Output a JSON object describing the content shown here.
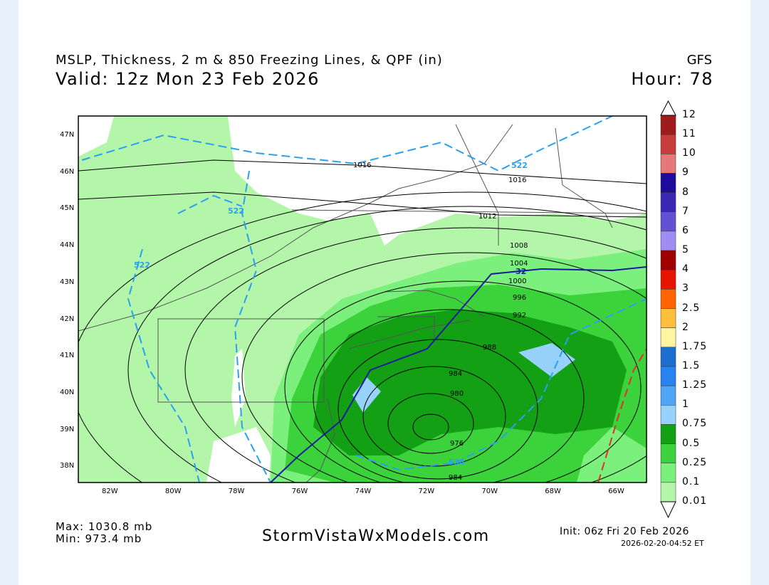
{
  "header": {
    "title": "MSLP, Thickness, 2 m & 850 Freezing Lines, & QPF (in)",
    "model": "GFS",
    "valid": "Valid: 12z Mon 23 Feb 2026",
    "hour": "Hour: 78"
  },
  "map": {
    "lat_labels": [
      "47N",
      "46N",
      "45N",
      "44N",
      "43N",
      "42N",
      "41N",
      "40N",
      "39N",
      "38N"
    ],
    "lon_labels": [
      "82W",
      "80W",
      "78W",
      "76W",
      "74W",
      "72W",
      "70W",
      "68W",
      "66W"
    ],
    "isobar_labels": [
      "1016",
      "1016",
      "1012",
      "1008",
      "1004",
      "1000",
      "996",
      "992",
      "988",
      "984",
      "980",
      "976",
      "984"
    ],
    "thickness_labels": [
      "522",
      "522",
      "522",
      "534"
    ],
    "freezing_label": "32",
    "colors": {
      "qpf_001": "#b3f6a9",
      "qpf_01": "#7cf07c",
      "qpf_025": "#3cd23c",
      "qpf_05": "#14a014",
      "qpf_075": "#96d2fa",
      "thickness": "#2aa0f0",
      "freezing_850": "#1a1aa0",
      "freezing_2m": "#e03030",
      "isobar": "#000000"
    }
  },
  "colorbar": {
    "labels": [
      "12",
      "11",
      "10",
      "9",
      "8",
      "7",
      "6",
      "5",
      "4",
      "3",
      "2.5",
      "2",
      "1.75",
      "1.5",
      "1.25",
      "1",
      "0.75",
      "0.5",
      "0.25",
      "0.1",
      "0.01"
    ],
    "colors": [
      "#a01c1c",
      "#c83c3c",
      "#e67878",
      "#1e0a9b",
      "#3c28b4",
      "#6450d2",
      "#a08cf5",
      "#a00000",
      "#e61400",
      "#ff6400",
      "#ffbe3c",
      "#fff5a0",
      "#1e6ed2",
      "#2882f0",
      "#50a5f5",
      "#96d2fa",
      "#14a014",
      "#3cd23c",
      "#7cf07c",
      "#b3f6a9"
    ]
  },
  "footer": {
    "max": "Max: 1030.8 mb",
    "min": "Min: 973.4 mb",
    "brand": "StormVistaWxModels.com",
    "init": "Init: 06z Fri 20 Feb 2026",
    "stamp": "2026-02-20-04:52 ET"
  }
}
